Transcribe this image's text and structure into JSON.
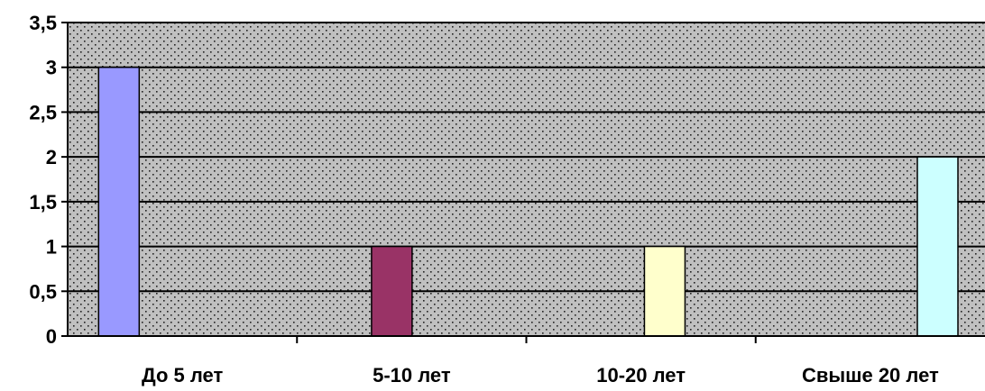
{
  "chart_data": {
    "type": "bar",
    "categories": [
      "До 5 лет",
      "5-10 лет",
      "10-20 лет",
      "Свыше 20 лет"
    ],
    "values": [
      3,
      1,
      1,
      2
    ],
    "ylim": [
      0,
      3.5
    ],
    "yticks": [
      "0",
      "0,5",
      "1",
      "1,5",
      "2",
      "2,5",
      "3",
      "3,5"
    ],
    "grid": true,
    "legend": "none",
    "bar_colors": [
      "#9999ff",
      "#993366",
      "#ffffcc",
      "#ccffff"
    ],
    "plot_background": "#c0c0c0"
  }
}
